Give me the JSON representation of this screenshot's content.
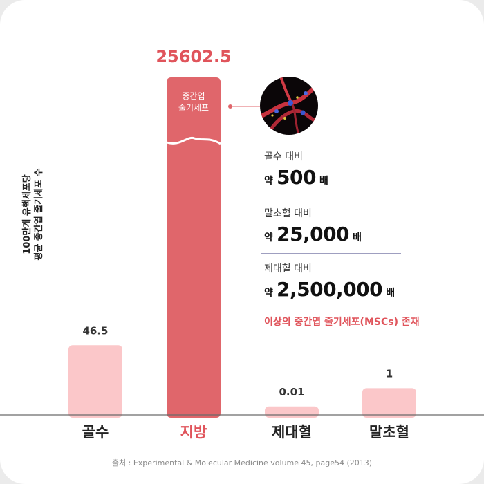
{
  "colors": {
    "highlight_bar": "#e0666b",
    "light_bar": "#fbc7c9",
    "highlight_text": "#e0545b",
    "axis": "#6a6a6a"
  },
  "chart_data": {
    "type": "bar",
    "categories": [
      "골수",
      "지방",
      "제대혈",
      "말초혈"
    ],
    "values": [
      46.5,
      25602.5,
      0.01,
      1
    ],
    "value_labels": [
      "46.5",
      "25602.5",
      "0.01",
      "1"
    ],
    "highlight_index": 1,
    "y_scale": "non-linear (visual)",
    "ylabel": [
      "100만개 유핵세포당",
      "평균 중간엽 줄기세포 수"
    ],
    "grid": false
  },
  "bar_insert": {
    "line1": "중간엽",
    "line2": "줄기세포"
  },
  "comparisons": [
    {
      "label": "골수 대비",
      "prefix": "약",
      "number": "500",
      "suffix": "배"
    },
    {
      "label": "말초혈 대비",
      "prefix": "약",
      "number": "25,000",
      "suffix": "배"
    },
    {
      "label": "제대혈 대비",
      "prefix": "약",
      "number": "2,500,000",
      "suffix": "배"
    }
  ],
  "highlight_text": "이상의 중간엽 줄기세포(MSCs) 존재",
  "source": "출처 : Experimental & Molecular Medicine volume 45, page54 (2013)"
}
